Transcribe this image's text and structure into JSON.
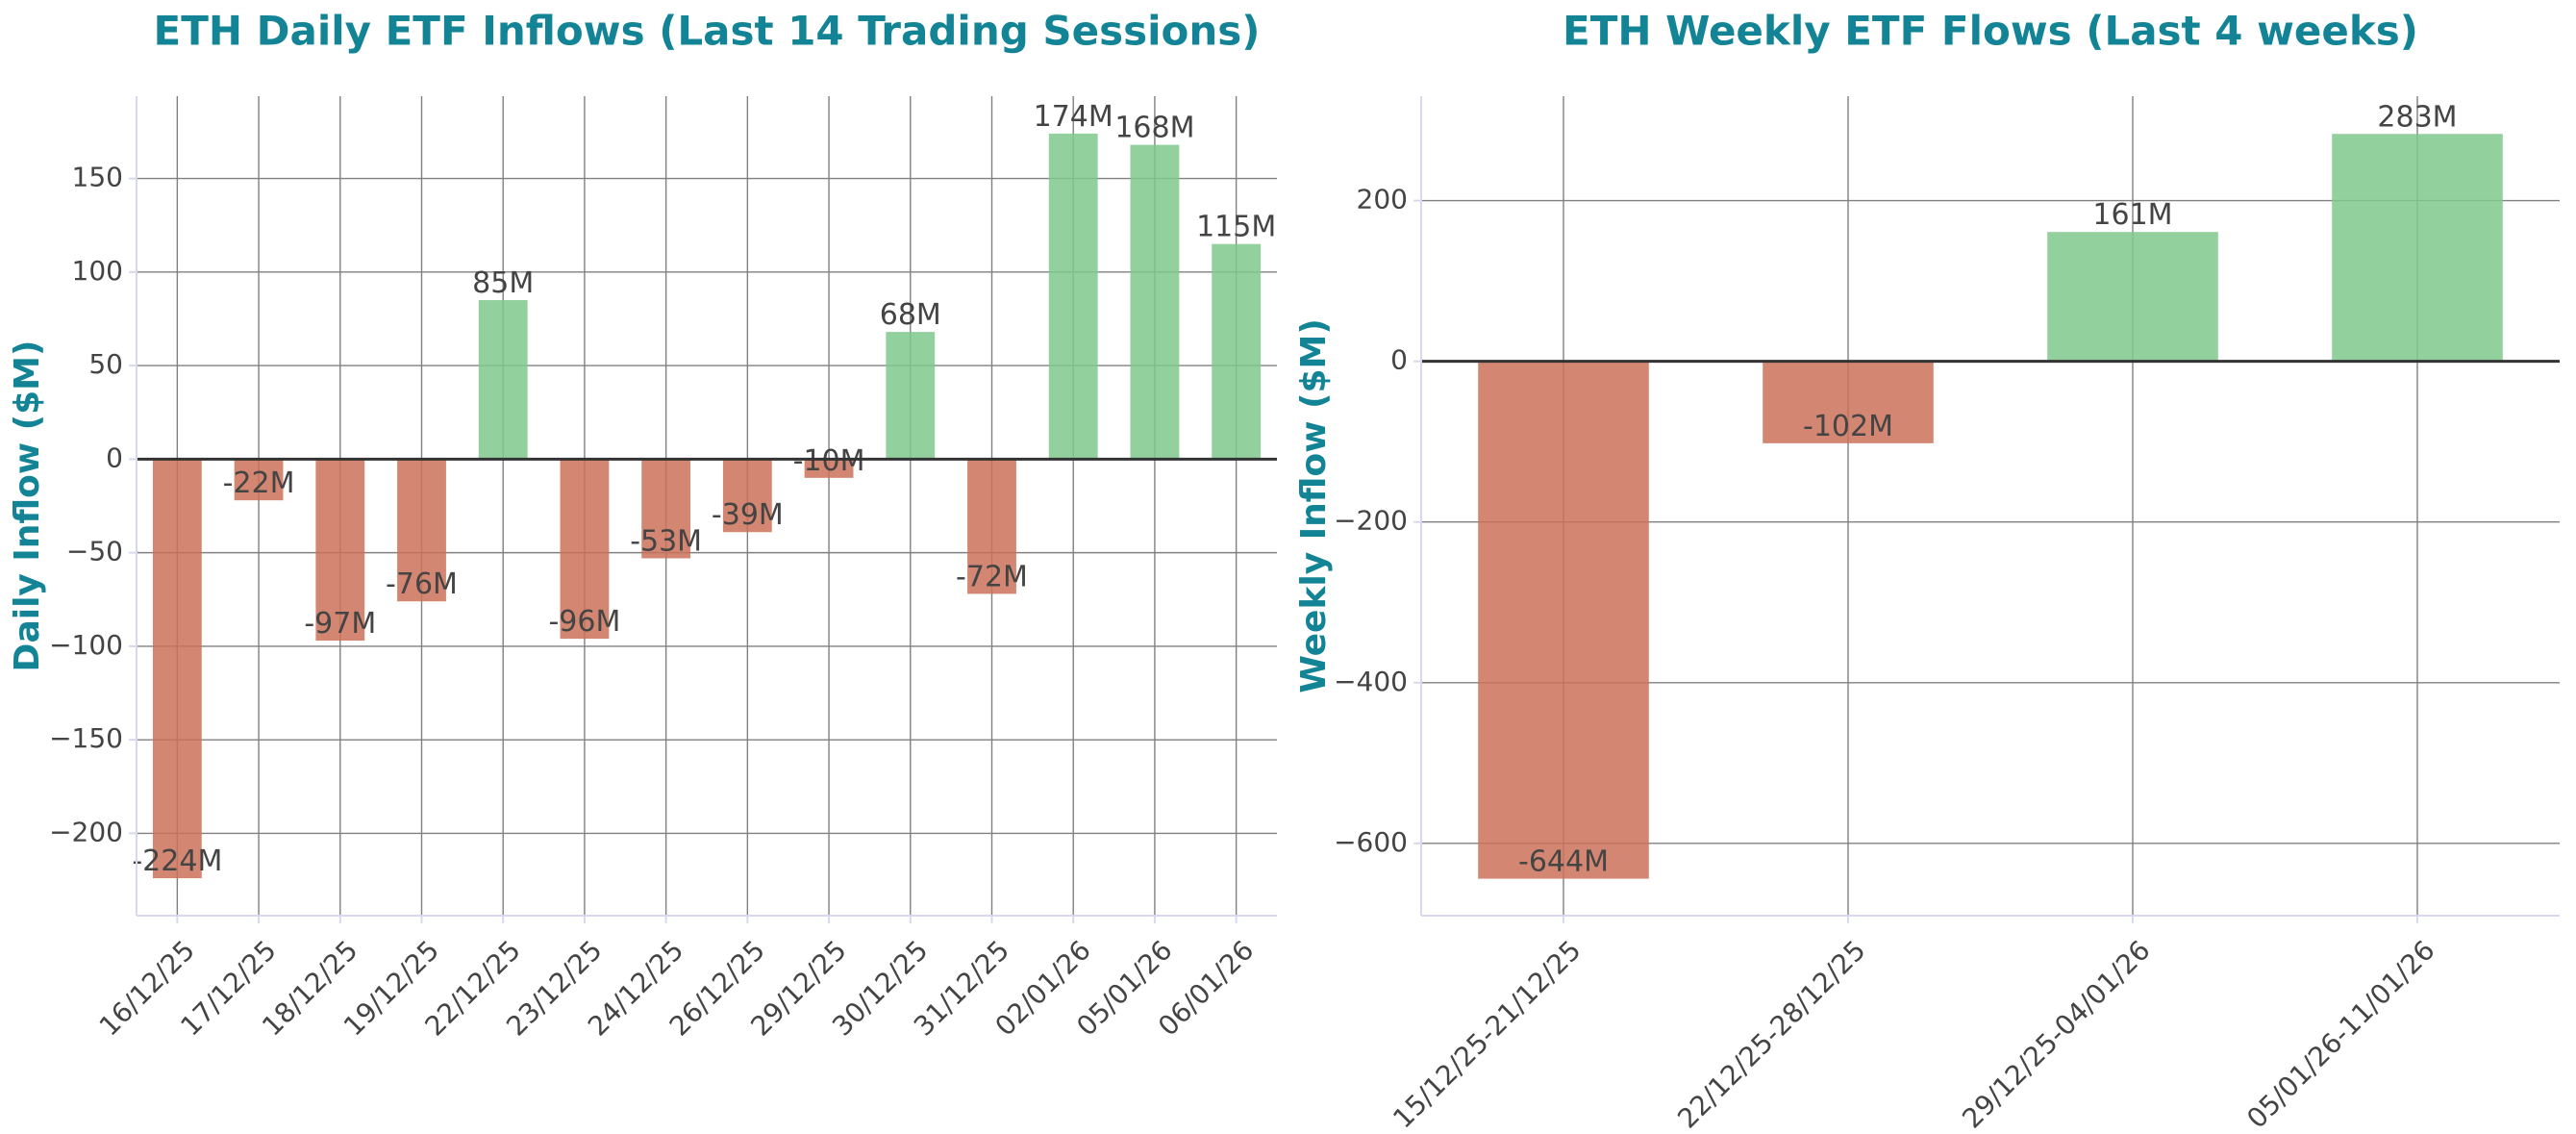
{
  "colors": {
    "title": "#138496",
    "positive": "#7fc98c",
    "negative": "#cb7259",
    "grid": "#808080",
    "zero_line": "#333333",
    "frame": "#d8d8ee",
    "text": "#444444"
  },
  "chart_data": [
    {
      "type": "bar",
      "title": "ETH Daily ETF Inflows (Last 14 Trading Sessions)",
      "xlabel": "",
      "ylabel": "Daily Inflow ($M)",
      "categories": [
        "16/12/25",
        "17/12/25",
        "18/12/25",
        "19/12/25",
        "22/12/25",
        "23/12/25",
        "24/12/25",
        "26/12/25",
        "29/12/25",
        "30/12/25",
        "31/12/25",
        "02/01/26",
        "05/01/26",
        "06/01/26"
      ],
      "values": [
        -224,
        -22,
        -97,
        -76,
        85,
        -96,
        -53,
        -39,
        -10,
        68,
        -72,
        174,
        168,
        115
      ],
      "data_labels": [
        "-224M",
        "-22M",
        "-97M",
        "-76M",
        "85M",
        "-96M",
        "-53M",
        "-39M",
        "-10M",
        "68M",
        "-72M",
        "174M",
        "168M",
        "115M"
      ],
      "ylim": [
        -244,
        194
      ],
      "yticks": [
        -200,
        -150,
        -100,
        -50,
        0,
        50,
        100,
        150
      ],
      "ytick_labels": [
        "−200",
        "−150",
        "−100",
        "−50",
        "0",
        "50",
        "100",
        "150"
      ],
      "grid": true,
      "legend": "none"
    },
    {
      "type": "bar",
      "title": "ETH Weekly ETF Flows (Last 4 weeks)",
      "xlabel": "",
      "ylabel": "Weekly Inflow ($M)",
      "categories": [
        "15/12/25-21/12/25",
        "22/12/25-28/12/25",
        "29/12/25-04/01/26",
        "05/01/26-11/01/26"
      ],
      "values": [
        -644,
        -102,
        161,
        283
      ],
      "data_labels": [
        "-644M",
        "-102M",
        "161M",
        "283M"
      ],
      "ylim": [
        -690,
        330
      ],
      "yticks": [
        -600,
        -400,
        -200,
        0,
        200
      ],
      "ytick_labels": [
        "−600",
        "−400",
        "−200",
        "0",
        "200"
      ],
      "grid": true,
      "legend": "none"
    }
  ]
}
